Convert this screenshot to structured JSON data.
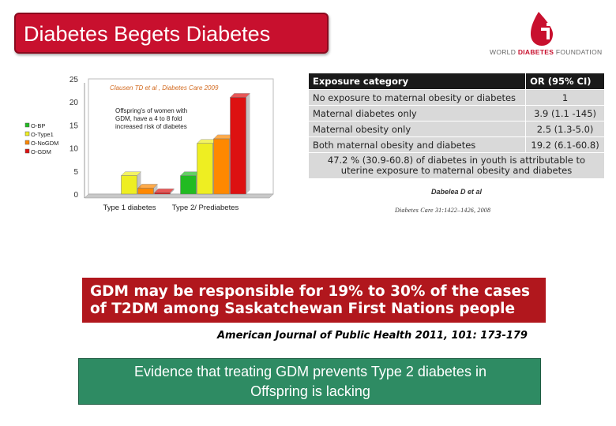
{
  "slide": {
    "title": "Diabetes Begets Diabetes",
    "logo": {
      "org_part1": "WORLD ",
      "org_part2": "DIABETES",
      "org_part3": " FOUNDATION"
    },
    "table": {
      "headers": [
        "Exposure category",
        "OR (95% CI)"
      ],
      "rows": [
        [
          "No exposure to maternal obesity or diabetes",
          "1"
        ],
        [
          "Maternal diabetes only",
          "3.9 (1.1 -145)"
        ],
        [
          "Maternal obesity only",
          "2.5 (1.3-5.0)"
        ],
        [
          "Both maternal obesity and diabetes",
          "19.2 (6.1-60.8)"
        ]
      ],
      "note": "47.2 % (30.9-60.8) of diabetes in youth is attributable to uterine exposure to maternal obesity and diabetes"
    },
    "table_citation_author": "Dabelea D et al",
    "table_citation_journal": "Diabetes Care 31:1422–1426, 2008",
    "banner_line1": "GDM may be responsible for 19% to 30% of the cases",
    "banner_line2": "of T2DM among Saskatchewan First Nations people",
    "journal_citation": "American Journal of Public Health 2011, 101: 173-179",
    "evidence_line1": "Evidence that treating GDM prevents Type 2 diabetes in",
    "evidence_line2": "Offspring is lacking"
  },
  "chart_data": {
    "type": "bar",
    "categories": [
      "Type 1 diabetes",
      "Type 2/ Prediabetes"
    ],
    "series": [
      {
        "name": "O-BP",
        "color": "#22bb22",
        "values": [
          0,
          4
        ]
      },
      {
        "name": "O-Type1",
        "color": "#eeee22",
        "values": [
          4,
          11
        ]
      },
      {
        "name": "O-NoGDM",
        "color": "#ff8800",
        "values": [
          1.3,
          12
        ]
      },
      {
        "name": "O-GDM",
        "color": "#dd1111",
        "values": [
          0.3,
          21
        ]
      }
    ],
    "ylim": [
      0,
      25
    ],
    "yticks": [
      "0",
      "5",
      "10",
      "15",
      "20",
      "25"
    ],
    "annotation_citation": "Clausen TD et al , Diabetes Care 2009",
    "annotation_lines": [
      "Offspring's of women with",
      "GDM, have a 4 to 8 fold",
      "increased risk of diabetes"
    ],
    "legend_position": "left",
    "grid": false
  }
}
